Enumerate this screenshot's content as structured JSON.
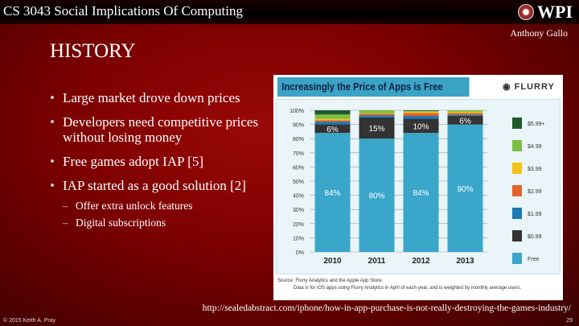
{
  "header": {
    "course": "CS 3043 Social Implications Of Computing",
    "logo_text": "WPI",
    "author": "Anthony Gallo"
  },
  "title": "HISTORY",
  "bullets": [
    {
      "text": "Large market drove down prices"
    },
    {
      "text": "Developers need competitive prices without losing money"
    },
    {
      "text": "Free games adopt IAP [5]"
    },
    {
      "text": "IAP started as a good solution [2]",
      "sub": [
        "Offer extra unlock features",
        "Digital subscriptions"
      ]
    }
  ],
  "chart_brand": "FLURRY",
  "chart_source": [
    "Source: Flurry Analytics and the Apple App Store.",
    "Data is for iOS apps using Flurry Analytics in April of each year, and is weighted by monthly average users."
  ],
  "footer": {
    "url": "http://sealedabstract.com/iphone/how-in-app-purchase-is-not-really-destroying-the-games-industry/",
    "copyright": "© 2015 Keith A. Pray",
    "page": "29"
  },
  "chart_data": {
    "type": "bar",
    "stacked": true,
    "title": "Increasingly the Price of Apps is Free",
    "categories": [
      "2010",
      "2011",
      "2012",
      "2013"
    ],
    "ylim": [
      0,
      100
    ],
    "yticks": [
      "0%",
      "10%",
      "20%",
      "30%",
      "40%",
      "50%",
      "60%",
      "70%",
      "80%",
      "90%",
      "100%"
    ],
    "grid": true,
    "legend": "right",
    "series": [
      {
        "name": "Free",
        "color": "#3aa6c9",
        "values": [
          84,
          80,
          84,
          90
        ],
        "labels": [
          "84%",
          "80%",
          "84%",
          "90%"
        ]
      },
      {
        "name": "$0.99",
        "color": "#333333",
        "values": [
          6,
          15,
          10,
          6
        ],
        "labels": [
          "6%",
          "15%",
          "10%",
          "6%"
        ]
      },
      {
        "name": "$1.99",
        "color": "#1f77b4",
        "values": [
          2,
          1.5,
          2,
          1
        ]
      },
      {
        "name": "$2.99",
        "color": "#e2632a",
        "values": [
          1,
          1,
          2,
          1
        ]
      },
      {
        "name": "$3.99",
        "color": "#f2c11d",
        "values": [
          1,
          0.5,
          1,
          1
        ]
      },
      {
        "name": "$4.99",
        "color": "#7cbf42",
        "values": [
          3,
          2,
          0.5,
          1
        ]
      },
      {
        "name": "$5.99+",
        "color": "#1e5a2c",
        "values": [
          3,
          0,
          0.5,
          0
        ]
      }
    ]
  }
}
